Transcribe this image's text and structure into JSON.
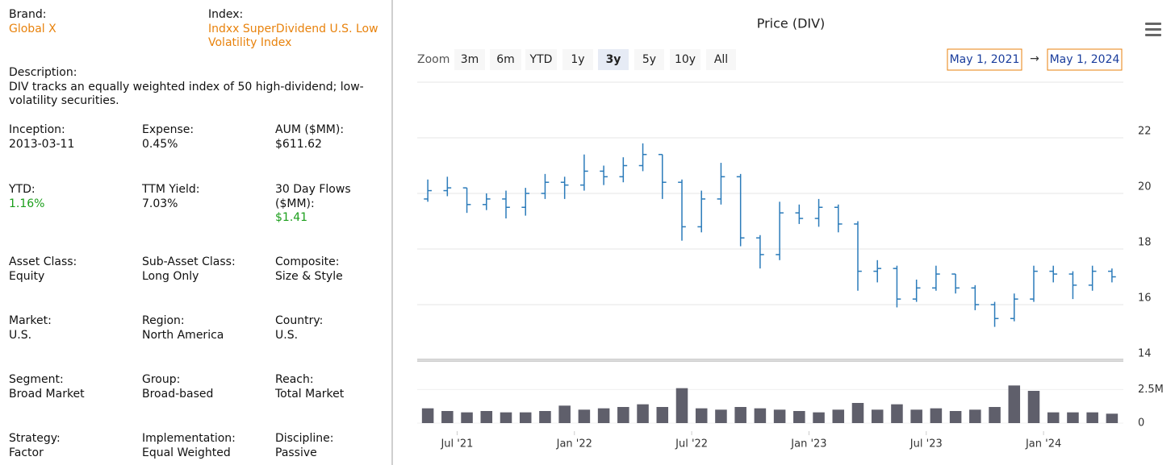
{
  "sidebar": {
    "rows": [
      {
        "fields": [
          {
            "label": "Brand:",
            "value": "Global X",
            "color": "#e8820c"
          },
          {
            "label": "Index:",
            "value": "Indxx SuperDividend U.S. Low Volatility Index",
            "color": "#e8820c"
          }
        ]
      },
      {
        "fields": [
          {
            "label": "Description:",
            "value": "DIV tracks an equally weighted index of 50 high-dividend; low-volatility securities."
          }
        ]
      },
      {
        "fields": [
          {
            "label": "Inception:",
            "value": "2013-03-11"
          },
          {
            "label": "Expense:",
            "value": "0.45%"
          },
          {
            "label": "AUM ($MM):",
            "value": "$611.62"
          }
        ]
      },
      {
        "fields": [
          {
            "label": "YTD:",
            "value": "1.16%",
            "color": "#1a9e1a"
          },
          {
            "label": "TTM Yield:",
            "value": "7.03%"
          },
          {
            "label": "30 Day Flows ($MM):",
            "value": "$1.41",
            "color": "#1a9e1a"
          }
        ]
      },
      {
        "fields": [
          {
            "label": "Asset Class:",
            "value": "Equity"
          },
          {
            "label": "Sub-Asset Class:",
            "value": "Long Only"
          },
          {
            "label": "Composite:",
            "value": "Size & Style"
          }
        ]
      },
      {
        "fields": [
          {
            "label": "Market:",
            "value": "U.S."
          },
          {
            "label": "Region:",
            "value": "North America"
          },
          {
            "label": "Country:",
            "value": "U.S."
          }
        ]
      },
      {
        "fields": [
          {
            "label": "Segment:",
            "value": "Broad Market"
          },
          {
            "label": "Group:",
            "value": "Broad-based"
          },
          {
            "label": "Reach:",
            "value": "Total Market"
          }
        ]
      },
      {
        "fields": [
          {
            "label": "Strategy:",
            "value": "Factor"
          },
          {
            "label": "Implementation:",
            "value": "Equal Weighted"
          },
          {
            "label": "Discipline:",
            "value": "Passive"
          }
        ]
      }
    ]
  },
  "chart_data": {
    "type": "ohlc",
    "title": "Price (DIV)",
    "zoom_label": "Zoom",
    "zoom_buttons": [
      "3m",
      "6m",
      "YTD",
      "1y",
      "3y",
      "5y",
      "10y",
      "All"
    ],
    "active_zoom": "3y",
    "range_start": "May 1, 2021",
    "range_arrow": "→",
    "range_end": "May 1, 2024",
    "x": [
      "2021-05",
      "2021-06",
      "2021-07",
      "2021-08",
      "2021-09",
      "2021-10",
      "2021-11",
      "2021-12",
      "2022-01",
      "2022-02",
      "2022-03",
      "2022-04",
      "2022-05",
      "2022-06",
      "2022-07",
      "2022-08",
      "2022-09",
      "2022-10",
      "2022-11",
      "2022-12",
      "2023-01",
      "2023-02",
      "2023-03",
      "2023-04",
      "2023-05",
      "2023-06",
      "2023-07",
      "2023-08",
      "2023-09",
      "2023-10",
      "2023-11",
      "2023-12",
      "2024-01",
      "2024-02",
      "2024-03",
      "2024-04"
    ],
    "xlim": [
      "2021-05",
      "2024-05"
    ],
    "xticks": [
      {
        "value": "2021-07",
        "label": "Jul '21"
      },
      {
        "value": "2022-01",
        "label": "Jan '22"
      },
      {
        "value": "2022-07",
        "label": "Jul '22"
      },
      {
        "value": "2023-01",
        "label": "Jan '23"
      },
      {
        "value": "2023-07",
        "label": "Jul '23"
      },
      {
        "value": "2024-01",
        "label": "Jan '24"
      }
    ],
    "price": {
      "color": "#2b7bba",
      "open": [
        19.8,
        20.1,
        20.2,
        19.6,
        19.8,
        19.5,
        20.0,
        20.4,
        20.3,
        20.8,
        20.6,
        21.0,
        21.4,
        20.4,
        18.8,
        19.8,
        20.6,
        18.4,
        17.8,
        19.3,
        19.1,
        19.5,
        18.9,
        17.2,
        17.3,
        16.2,
        16.6,
        17.1,
        16.6,
        16.0,
        15.5,
        16.2,
        17.2,
        17.1,
        16.7,
        17.2
      ],
      "high": [
        20.5,
        20.6,
        20.2,
        20.0,
        20.1,
        20.2,
        20.7,
        20.6,
        21.4,
        21.0,
        21.3,
        21.8,
        21.4,
        20.5,
        20.1,
        21.1,
        20.7,
        18.5,
        19.7,
        19.6,
        19.8,
        19.6,
        19.0,
        17.6,
        17.4,
        16.9,
        17.4,
        17.1,
        16.7,
        16.1,
        16.4,
        17.4,
        17.4,
        17.2,
        17.4,
        17.3
      ],
      "low": [
        19.7,
        19.9,
        19.3,
        19.4,
        19.1,
        19.2,
        19.8,
        19.8,
        20.1,
        20.3,
        20.4,
        20.8,
        19.8,
        18.3,
        18.6,
        19.6,
        18.1,
        17.3,
        17.6,
        18.9,
        18.8,
        18.6,
        16.5,
        16.8,
        15.9,
        16.1,
        16.5,
        16.4,
        15.8,
        15.2,
        15.4,
        16.1,
        16.8,
        16.2,
        16.5,
        16.8
      ],
      "close": [
        20.1,
        20.2,
        19.6,
        19.8,
        19.5,
        20.0,
        20.4,
        20.3,
        20.8,
        20.6,
        21.0,
        21.4,
        20.4,
        18.8,
        19.8,
        20.6,
        18.4,
        17.8,
        19.3,
        19.1,
        19.5,
        18.9,
        17.2,
        17.3,
        16.2,
        16.6,
        17.1,
        16.6,
        16.0,
        15.5,
        16.2,
        17.2,
        17.1,
        16.7,
        17.2,
        17.0
      ],
      "ylim": [
        14,
        24
      ],
      "yticks": [
        14,
        16,
        18,
        20,
        22
      ],
      "grid": true
    },
    "volume": {
      "color": "#5f5f6b",
      "values": [
        1100000,
        900000,
        800000,
        900000,
        800000,
        800000,
        900000,
        1300000,
        1000000,
        1100000,
        1200000,
        1400000,
        1200000,
        2600000,
        1100000,
        1000000,
        1200000,
        1100000,
        1000000,
        900000,
        800000,
        1000000,
        1500000,
        1000000,
        1400000,
        1000000,
        1100000,
        900000,
        1000000,
        1200000,
        2800000,
        2400000,
        800000,
        800000,
        800000,
        700000
      ],
      "ylim": [
        0,
        3000000
      ],
      "yticks": [
        0,
        {
          "value": 2500000,
          "label": "2.5M"
        }
      ]
    }
  }
}
